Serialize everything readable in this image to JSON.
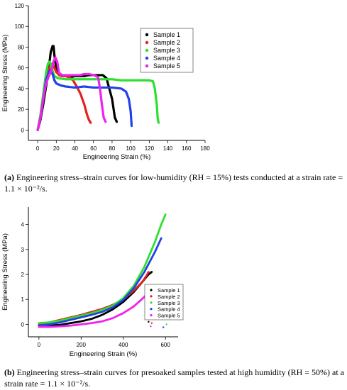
{
  "chart_data": [
    {
      "type": "scatter",
      "xlabel": "Engineering Strain (%)",
      "ylabel": "Engineering Stress (MPa)",
      "xlim": [
        -10,
        180
      ],
      "ylim": [
        -10,
        120
      ],
      "xticks": [
        0,
        20,
        40,
        60,
        80,
        100,
        120,
        140,
        160,
        180
      ],
      "yticks": [
        0,
        20,
        40,
        60,
        80,
        100,
        120
      ],
      "legend": "top-right",
      "series": [
        {
          "name": "Sample 1",
          "color": "#000000",
          "x": [
            0,
            3,
            6,
            9,
            12,
            14,
            16,
            17,
            18,
            20,
            23,
            26,
            30,
            35,
            40,
            45,
            50,
            55,
            60,
            65,
            70,
            74,
            77,
            80,
            83,
            85
          ],
          "y": [
            0,
            10,
            25,
            42,
            60,
            75,
            81,
            81,
            72,
            60,
            55,
            53,
            52,
            51,
            52,
            52,
            52,
            53,
            53,
            53,
            53,
            50,
            40,
            30,
            12,
            8
          ]
        },
        {
          "name": "Sample 2",
          "color": "#e4221f",
          "x": [
            0,
            3,
            6,
            9,
            12,
            14,
            16,
            18,
            20,
            23,
            26,
            30,
            34,
            38,
            42,
            46,
            50,
            53,
            55,
            57
          ],
          "y": [
            0,
            12,
            30,
            48,
            58,
            63,
            64,
            60,
            56,
            53,
            52,
            52,
            51,
            48,
            42,
            35,
            25,
            15,
            10,
            7
          ]
        },
        {
          "name": "Sample 3",
          "color": "#2ee02e",
          "x": [
            0,
            3,
            6,
            9,
            11,
            13,
            15,
            18,
            22,
            30,
            40,
            50,
            60,
            70,
            80,
            90,
            100,
            110,
            120,
            124,
            126,
            128,
            129,
            130
          ],
          "y": [
            0,
            15,
            35,
            55,
            64,
            66,
            60,
            52,
            50,
            49,
            49,
            49,
            49,
            49,
            49,
            48,
            48,
            48,
            48,
            47,
            40,
            25,
            12,
            7
          ]
        },
        {
          "name": "Sample 4",
          "color": "#2541e8",
          "x": [
            0,
            3,
            6,
            9,
            12,
            14,
            16,
            18,
            20,
            25,
            30,
            40,
            50,
            60,
            70,
            80,
            90,
            95,
            98,
            100,
            101
          ],
          "y": [
            0,
            12,
            30,
            48,
            56,
            58,
            54,
            48,
            45,
            43,
            42,
            41,
            42,
            41,
            41,
            41,
            40,
            37,
            30,
            18,
            4
          ]
        },
        {
          "name": "Sample 5",
          "color": "#ee22ee",
          "x": [
            0,
            3,
            6,
            9,
            12,
            15,
            17,
            19,
            21,
            23,
            26,
            30,
            35,
            40,
            45,
            50,
            55,
            60,
            65,
            67,
            69,
            71,
            73
          ],
          "y": [
            0,
            12,
            30,
            45,
            52,
            58,
            66,
            70,
            66,
            55,
            53,
            53,
            53,
            53,
            53,
            54,
            54,
            53,
            51,
            40,
            25,
            12,
            8
          ]
        }
      ]
    },
    {
      "type": "scatter",
      "xlabel": "Engineering Strain (%)",
      "ylabel": "Engineering Stress (MPa)",
      "xlim": [
        -50,
        660
      ],
      "ylim": [
        -0.5,
        4.7
      ],
      "xticks": [
        0,
        200,
        400,
        600
      ],
      "yticks": [
        0,
        1,
        2,
        3,
        4
      ],
      "legend": "right",
      "series": [
        {
          "name": "Sample 1",
          "color": "#000000",
          "x": [
            0,
            50,
            100,
            150,
            200,
            250,
            300,
            350,
            400,
            450,
            500,
            520,
            535
          ],
          "y": [
            -0.05,
            -0.05,
            -0.02,
            0.05,
            0.12,
            0.22,
            0.38,
            0.6,
            0.9,
            1.3,
            1.8,
            2.0,
            2.1
          ]
        },
        {
          "name": "Sample 2",
          "color": "#e4221f",
          "x": [
            0,
            50,
            100,
            150,
            200,
            250,
            300,
            350,
            400,
            450,
            490,
            510,
            520
          ],
          "y": [
            0,
            0.08,
            0.18,
            0.28,
            0.38,
            0.5,
            0.62,
            0.78,
            1.0,
            1.35,
            1.7,
            1.95,
            2.1
          ]
        },
        {
          "name": "Sample 3",
          "color": "#2ee02e",
          "x": [
            0,
            50,
            100,
            150,
            200,
            250,
            300,
            350,
            400,
            450,
            500,
            550,
            580,
            600
          ],
          "y": [
            0.05,
            0.08,
            0.15,
            0.25,
            0.35,
            0.45,
            0.58,
            0.75,
            1.05,
            1.55,
            2.3,
            3.3,
            4.0,
            4.4
          ]
        },
        {
          "name": "Sample 4",
          "color": "#2541e8",
          "x": [
            0,
            50,
            100,
            150,
            200,
            250,
            300,
            350,
            400,
            450,
            500,
            550,
            580
          ],
          "y": [
            -0.05,
            0.0,
            0.08,
            0.18,
            0.28,
            0.38,
            0.5,
            0.68,
            0.98,
            1.45,
            2.1,
            2.9,
            3.45
          ]
        },
        {
          "name": "Sample 5",
          "color": "#ee22ee",
          "x": [
            0,
            50,
            100,
            150,
            200,
            250,
            300,
            350,
            400,
            450,
            500,
            525
          ],
          "y": [
            -0.1,
            -0.1,
            -0.08,
            -0.05,
            0.0,
            0.05,
            0.12,
            0.25,
            0.45,
            0.72,
            1.1,
            1.35
          ]
        }
      ],
      "stray_points": [
        {
          "series": "Sample 1",
          "x": 520,
          "y": 0.1
        },
        {
          "series": "Sample 2",
          "x": 535,
          "y": 0.05
        },
        {
          "series": "Sample 3",
          "x": 605,
          "y": 0.0
        },
        {
          "series": "Sample 4",
          "x": 590,
          "y": -0.12
        },
        {
          "series": "Sample 5",
          "x": 530,
          "y": -0.08
        }
      ]
    }
  ],
  "captions": {
    "a_label": "(a)",
    "a_text": " Engineering stress–strain curves for low-humidity (RH = 15%) tests conducted at a strain rate = 1.1 × 10⁻²/s.",
    "b_label": "(b)",
    "b_text": " Engineering stress–strain curves for presoaked samples tested at high humidity (RH = 50%) at a strain rate = 1.1 × 10⁻²/s."
  }
}
